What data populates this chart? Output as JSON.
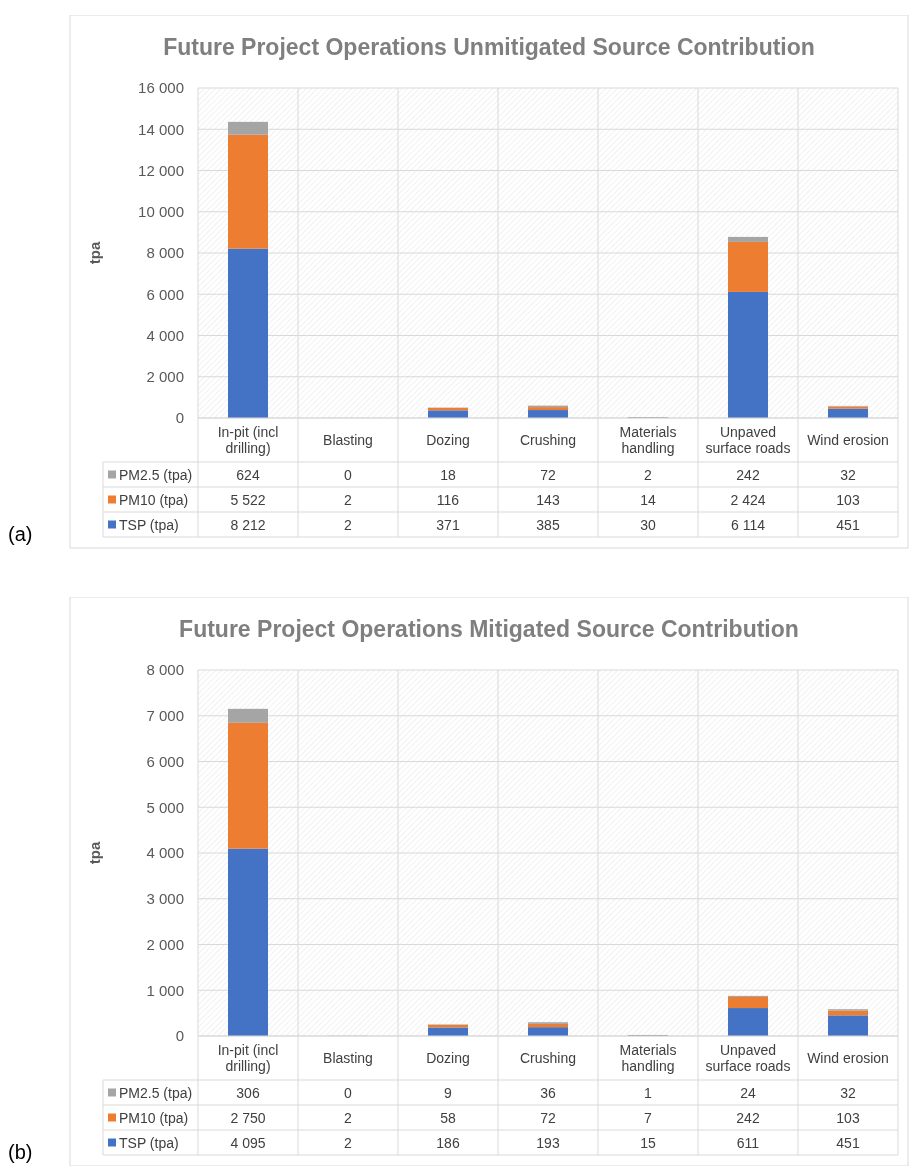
{
  "chart_data": [
    {
      "type": "bar",
      "stacked": true,
      "title": "Future Project Operations Unmitigated Source Contribution",
      "ylabel": "tpa",
      "categories": [
        "In-pit (incl drilling)",
        "Blasting",
        "Dozing",
        "Crushing",
        "Materials handling",
        "Unpaved surface roads",
        "Wind erosion"
      ],
      "series": [
        {
          "name": "TSP (tpa)",
          "color": "#4472c4",
          "values": [
            8212,
            2,
            371,
            385,
            30,
            6114,
            451
          ],
          "value_labels": [
            "8 212",
            "2",
            "371",
            "385",
            "30",
            "6 114",
            "451"
          ]
        },
        {
          "name": "PM10 (tpa)",
          "color": "#ed7d31",
          "values": [
            5522,
            2,
            116,
            143,
            14,
            2424,
            103
          ],
          "value_labels": [
            "5 522",
            "2",
            "116",
            "143",
            "14",
            "2 424",
            "103"
          ]
        },
        {
          "name": "PM2.5 (tpa)",
          "color": "#a5a5a5",
          "values": [
            624,
            0,
            18,
            72,
            2,
            242,
            32
          ],
          "value_labels": [
            "624",
            "0",
            "18",
            "72",
            "2",
            "242",
            "32"
          ]
        }
      ],
      "ylim": [
        0,
        16000
      ],
      "yticks": [
        0,
        {
          "value": 2000,
          "label": "2 000"
        },
        {
          "value": 4000,
          "label": "4 000"
        },
        {
          "value": 6000,
          "label": "6 000"
        },
        {
          "value": 8000,
          "label": "8 000"
        },
        {
          "value": 10000,
          "label": "10 000"
        },
        {
          "value": 12000,
          "label": "12 000"
        },
        {
          "value": 14000,
          "label": "14 000"
        },
        {
          "value": 16000,
          "label": "16 000"
        }
      ],
      "grid": true,
      "legend": "bottom left",
      "annotations": [
        "(a)"
      ]
    },
    {
      "type": "bar",
      "stacked": true,
      "title": "Future Project Operations Mitigated Source Contribution",
      "ylabel": "tpa",
      "categories": [
        "In-pit (incl drilling)",
        "Blasting",
        "Dozing",
        "Crushing",
        "Materials handling",
        "Unpaved surface roads",
        "Wind erosion"
      ],
      "series": [
        {
          "name": "TSP (tpa)",
          "color": "#4472c4",
          "values": [
            4095,
            2,
            186,
            193,
            15,
            611,
            451
          ],
          "value_labels": [
            "4 095",
            "2",
            "186",
            "193",
            "15",
            "611",
            "451"
          ]
        },
        {
          "name": "PM10 (tpa)",
          "color": "#ed7d31",
          "values": [
            2750,
            2,
            58,
            72,
            7,
            242,
            103
          ],
          "value_labels": [
            "2 750",
            "2",
            "58",
            "72",
            "7",
            "242",
            "103"
          ]
        },
        {
          "name": "PM2.5 (tpa)",
          "color": "#a5a5a5",
          "values": [
            306,
            0,
            9,
            36,
            1,
            24,
            32
          ],
          "value_labels": [
            "306",
            "0",
            "9",
            "36",
            "1",
            "24",
            "32"
          ]
        }
      ],
      "ylim": [
        0,
        8000
      ],
      "yticks": [
        0,
        {
          "value": 1000,
          "label": "1 000"
        },
        {
          "value": 2000,
          "label": "2 000"
        },
        {
          "value": 3000,
          "label": "3 000"
        },
        {
          "value": 4000,
          "label": "4 000"
        },
        {
          "value": 5000,
          "label": "5 000"
        },
        {
          "value": 6000,
          "label": "6 000"
        },
        {
          "value": 7000,
          "label": "7 000"
        },
        {
          "value": 8000,
          "label": "8 000"
        }
      ],
      "grid": true,
      "legend": "bottom left",
      "annotations": [
        "(b)"
      ]
    }
  ]
}
